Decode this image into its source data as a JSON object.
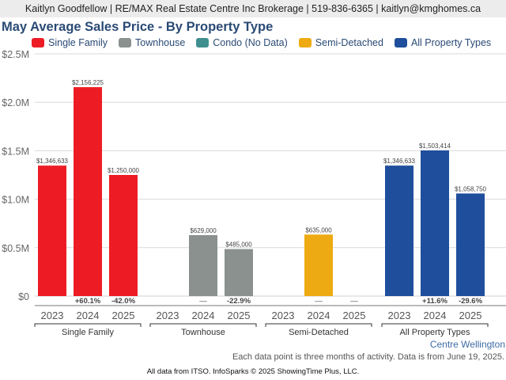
{
  "header": {
    "contact_line": "Kaitlyn Goodfellow | RE/MAX Real Estate Centre Inc Brokerage | 519-836-6365 | kaitlyn@kmghomes.ca"
  },
  "legend": [
    {
      "label": "Single Family",
      "color": "#ed1c24"
    },
    {
      "label": "Townhouse",
      "color": "#8a918e"
    },
    {
      "label": "Condo (No Data)",
      "color": "#3f8f8f"
    },
    {
      "label": "Semi-Detached",
      "color": "#eeaa12"
    },
    {
      "label": "All Property Types",
      "color": "#1f4e9c"
    }
  ],
  "chart_data": {
    "type": "bar",
    "title": "May Average Sales Price - By Property Type",
    "xlabel": "",
    "ylabel": "",
    "ylim": [
      0,
      2500000
    ],
    "yticks": [
      {
        "value": 0,
        "label": "$0"
      },
      {
        "value": 500000,
        "label": "$0.5M"
      },
      {
        "value": 1000000,
        "label": "$1.0M"
      },
      {
        "value": 1500000,
        "label": "$1.5M"
      },
      {
        "value": 2000000,
        "label": "$2.0M"
      },
      {
        "value": 2500000,
        "label": "$2.5M"
      }
    ],
    "grid": true,
    "legend_position": "top",
    "groups": [
      {
        "name": "Single Family",
        "color": "#ed1c24",
        "years": [
          "2023",
          "2024",
          "2025"
        ],
        "values": [
          1346633,
          2156225,
          1250000
        ],
        "value_labels": [
          "$1,346,633",
          "$2,156,225",
          "$1,250,000"
        ],
        "changes": [
          "",
          "+60.1%",
          "-42.0%"
        ]
      },
      {
        "name": "Townhouse",
        "color": "#8a918e",
        "years": [
          "2023",
          "2024",
          "2025"
        ],
        "values": [
          null,
          629000,
          485000
        ],
        "value_labels": [
          "",
          "$629,000",
          "$485,000"
        ],
        "changes": [
          "",
          "—",
          "-22.9%"
        ]
      },
      {
        "name": "Semi-Detached",
        "color": "#eeaa12",
        "years": [
          "2023",
          "2024",
          "2025"
        ],
        "values": [
          null,
          635000,
          null
        ],
        "value_labels": [
          "",
          "$635,000",
          ""
        ],
        "changes": [
          "",
          "—",
          "—"
        ]
      },
      {
        "name": "All Property Types",
        "color": "#1f4e9c",
        "years": [
          "2023",
          "2024",
          "2025"
        ],
        "values": [
          1346633,
          1503414,
          1058750
        ],
        "value_labels": [
          "$1,346,633",
          "$1,503,414",
          "$1,058,750"
        ],
        "changes": [
          "",
          "+11.6%",
          "-29.6%"
        ]
      }
    ]
  },
  "region": "Centre Wellington",
  "note": "Each data point is three months of activity. Data is from June 19, 2025.",
  "footer": "All data from ITSO. InfoSparks © 2025 ShowingTime Plus, LLC."
}
